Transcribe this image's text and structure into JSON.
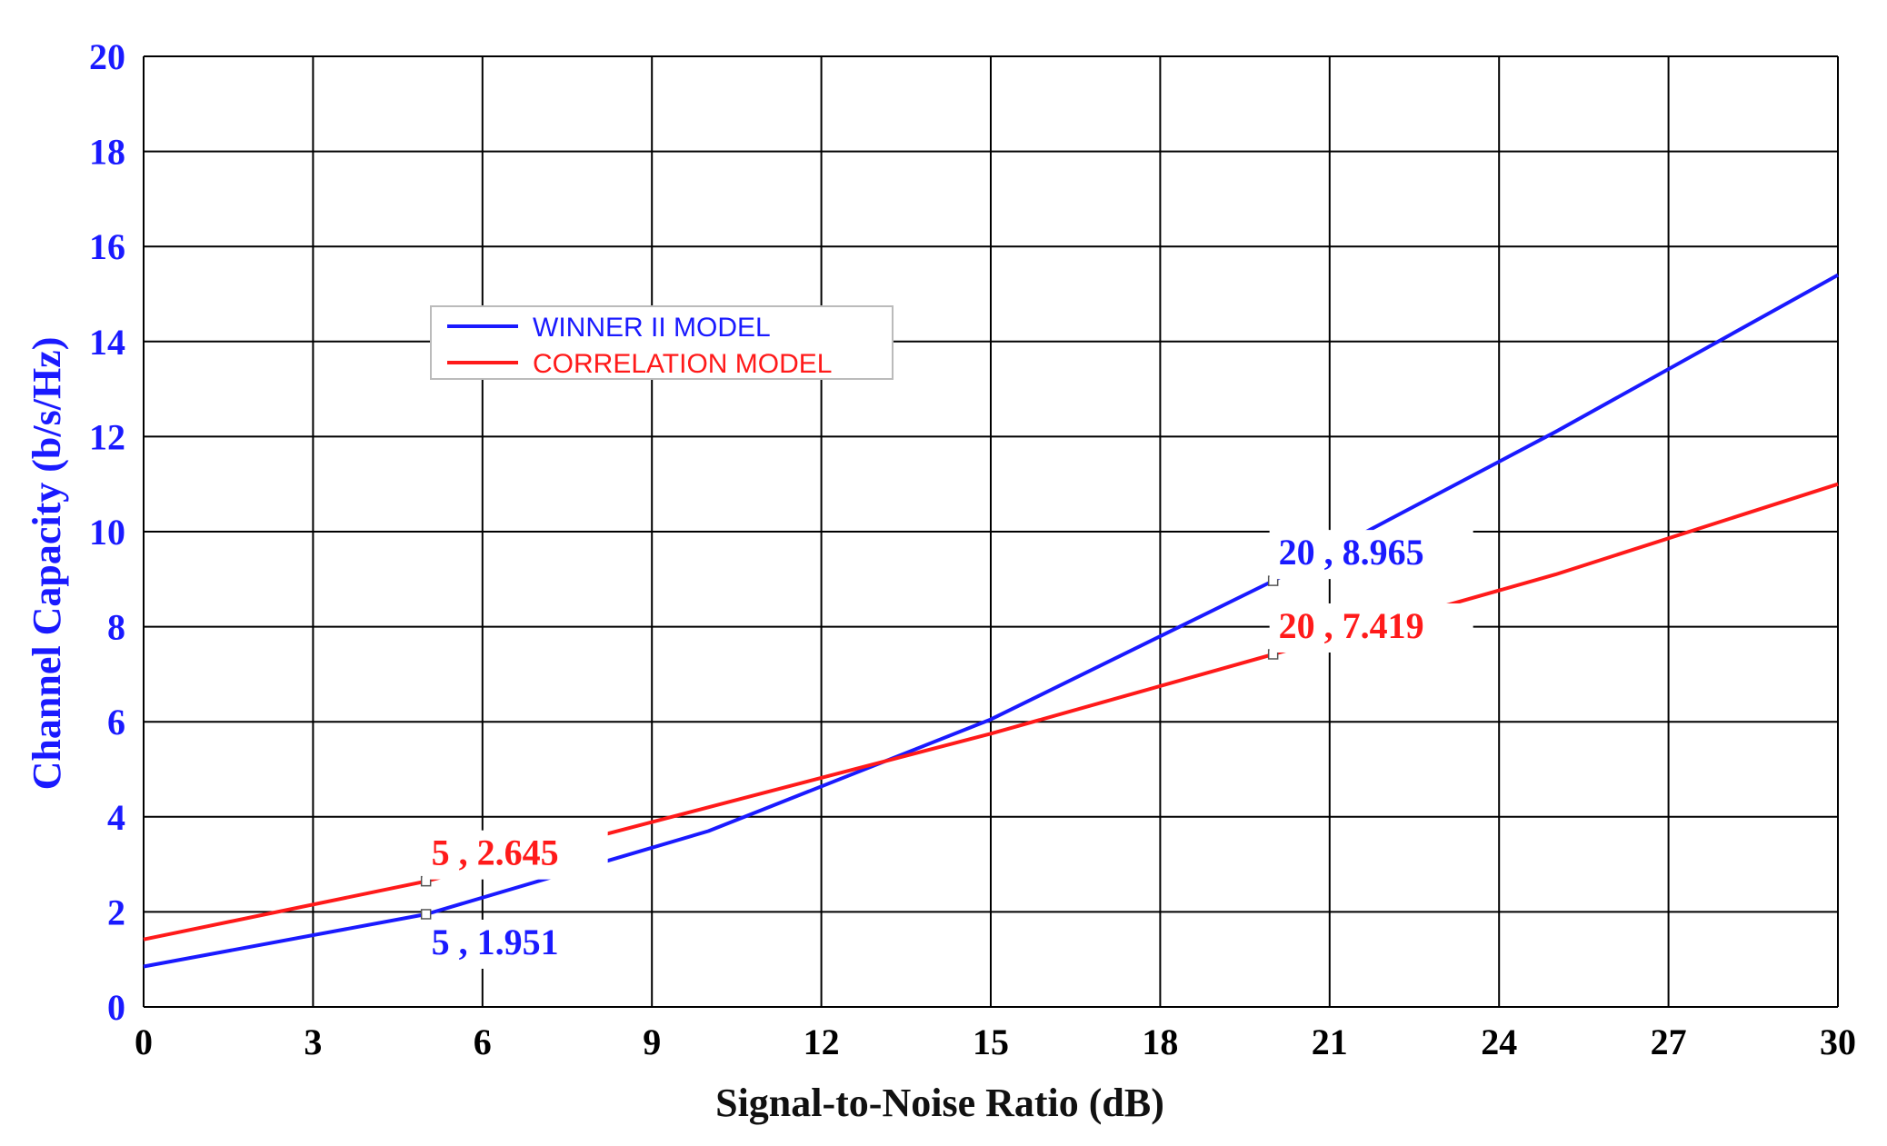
{
  "chart_data": {
    "type": "line",
    "title": "",
    "xlabel": "Signal-to-Noise Ratio (dB)",
    "ylabel": "Channel Capacity (b/s/Hz)",
    "xlim": [
      0,
      30
    ],
    "ylim": [
      0,
      20
    ],
    "xticks": [
      0,
      3,
      6,
      9,
      12,
      15,
      18,
      21,
      24,
      27,
      30
    ],
    "yticks": [
      0,
      2,
      4,
      6,
      8,
      10,
      12,
      14,
      16,
      18,
      20
    ],
    "grid": true,
    "legend_position": "upper-left",
    "series": [
      {
        "name": "WINNER II MODEL",
        "color": "#1a1aff",
        "x": [
          0,
          5,
          10,
          15,
          20,
          25,
          30
        ],
        "y": [
          0.85,
          1.951,
          3.7,
          6.05,
          8.965,
          12.1,
          15.4
        ]
      },
      {
        "name": "CORRELATION MODEL",
        "color": "#ff1a1a",
        "x": [
          0,
          5,
          10,
          15,
          20,
          25,
          30
        ],
        "y": [
          1.42,
          2.645,
          4.2,
          5.75,
          7.419,
          9.1,
          11.0
        ]
      }
    ],
    "annotations": [
      {
        "text": "5 , 1.951",
        "x": 5,
        "y": 1.951,
        "series": 0,
        "placement": "below"
      },
      {
        "text": "5 , 2.645",
        "x": 5,
        "y": 2.645,
        "series": 1,
        "placement": "above"
      },
      {
        "text": "20 , 8.965",
        "x": 20,
        "y": 8.965,
        "series": 0,
        "placement": "above"
      },
      {
        "text": "20 , 7.419",
        "x": 20,
        "y": 7.419,
        "series": 1,
        "placement": "above"
      }
    ],
    "colors": {
      "axis_label": "#1a1aff",
      "tick_y": "#1a1aff",
      "tick_x": "#000000",
      "grid": "#000000"
    }
  }
}
